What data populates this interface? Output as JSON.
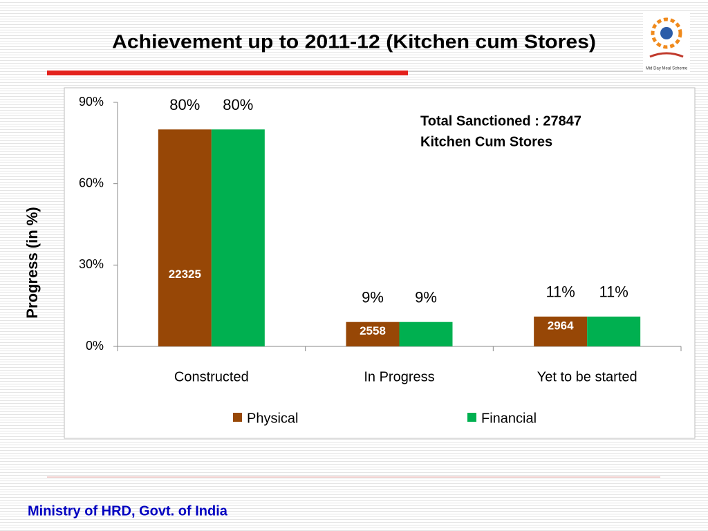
{
  "title": "Achievement up to 2011-12 (Kitchen cum Stores)",
  "logo_text": "Mid Day Meal Scheme",
  "footer": "Ministry of HRD, Govt. of India",
  "chart_data": {
    "type": "bar",
    "ylabel": "Progress (in %)",
    "annotation": [
      "Total Sanctioned :  27847",
      "Kitchen Cum Stores"
    ],
    "categories": [
      "Constructed",
      "In Progress",
      "Yet to be started"
    ],
    "series": [
      {
        "name": "Physical",
        "color": "#974706",
        "values": [
          80,
          9,
          11
        ],
        "value_labels": [
          "80%",
          "9%",
          "11%"
        ],
        "count_labels": [
          22325,
          2558,
          2964
        ]
      },
      {
        "name": "Financial",
        "color": "#00b050",
        "values": [
          80,
          9,
          11
        ],
        "value_labels": [
          "80%",
          "9%",
          "11%"
        ]
      }
    ],
    "ylim": [
      0,
      90
    ],
    "yticks": [
      {
        "value": 0,
        "label": "0%"
      },
      {
        "value": 30,
        "label": "30%"
      },
      {
        "value": 60,
        "label": "60%"
      },
      {
        "value": 90,
        "label": "90%"
      }
    ],
    "grid": false,
    "legend": "bottom"
  }
}
